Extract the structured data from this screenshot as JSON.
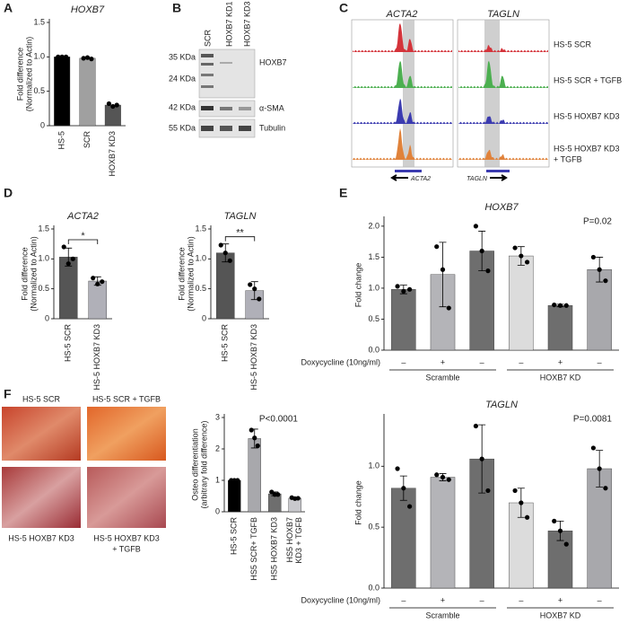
{
  "panel_labels": [
    "A",
    "B",
    "C",
    "D",
    "E",
    "F"
  ],
  "blot": {
    "lanes": [
      "SCR",
      "HOXB7 KD1",
      "HOXB7 KD3"
    ],
    "markers": [
      "35 KDa",
      "24 KDa",
      "42 KDa",
      "55 KDa"
    ],
    "proteins": [
      "HOXB7",
      "α-SMA",
      "Tubulin"
    ]
  },
  "tracks": {
    "genes": [
      "ACTA2",
      "TAGLN"
    ],
    "rows": [
      [
        "HS-5 SCR"
      ],
      [
        "HS-5 SCR + TGFB"
      ],
      [
        "HS-5 HOXB7 KD3"
      ],
      [
        "HS-5 HOXB7 KD3",
        "+ TGFB"
      ]
    ]
  },
  "images": {
    "labels": [
      [
        "HS-5 SCR"
      ],
      [
        "HS-5 SCR + TGFB"
      ],
      [
        "HS-5 HOXB7 KD3"
      ],
      [
        "HS-5 HOXB7 KD3",
        "+ TGFB"
      ]
    ]
  },
  "chart_data": [
    {
      "type": "bar",
      "title": "HOXB7",
      "ylabel": [
        "Fold difference",
        "(Normalized to Actin)"
      ],
      "categories": [
        "HS-5",
        "SCR",
        "HOXB7 KD3"
      ],
      "values": [
        1.0,
        0.98,
        0.3
      ],
      "points": [
        [
          1.0,
          1.0,
          1.0
        ],
        [
          0.98,
          0.99,
          0.97
        ],
        [
          0.32,
          0.28,
          0.3
        ]
      ],
      "colors": [
        "#000000",
        "#a0a0a0",
        "#555555"
      ],
      "ylim": [
        0,
        1.5
      ],
      "yticks": [
        0,
        0.5,
        {
          "value": 1,
          "label": "1.0"
        },
        1.5
      ]
    },
    {
      "type": "bar",
      "title": "ACTA2",
      "ylabel": [
        "Fold difference",
        "(Normalized to Actin)"
      ],
      "categories": [
        "HS-5 SCR",
        "HS-5 HOXB7 KD3"
      ],
      "values": [
        1.03,
        0.63
      ],
      "errors": [
        0.15,
        0.07
      ],
      "points": [
        [
          1.2,
          0.92,
          1.0
        ],
        [
          0.68,
          0.58,
          0.62
        ]
      ],
      "colors": [
        "#555555",
        "#b0b0b8"
      ],
      "significance": "*",
      "ylim": [
        0,
        1.5
      ],
      "yticks": [
        0,
        0.5,
        {
          "value": 1,
          "label": "1.0"
        },
        1.5
      ]
    },
    {
      "type": "bar",
      "title": "TAGLN",
      "ylabel": [
        "Fold difference",
        "(Normalized to Actin)"
      ],
      "categories": [
        "HS-5 SCR",
        "HS-5 HOXB7 KD3"
      ],
      "values": [
        1.1,
        0.47
      ],
      "errors": [
        0.15,
        0.15
      ],
      "points": [
        [
          1.23,
          1.1,
          0.97
        ],
        [
          0.57,
          0.5,
          0.33
        ]
      ],
      "colors": [
        "#555555",
        "#b0b0b8"
      ],
      "significance": "**",
      "ylim": [
        0,
        1.5
      ],
      "yticks": [
        0,
        0.5,
        {
          "value": 1,
          "label": "1.0"
        },
        1.5
      ]
    },
    {
      "type": "bar",
      "title": "HOXB7",
      "ylabel": [
        "Fold change"
      ],
      "annotation": "P=0.02",
      "xlabel": "Doxycycline (10ng/ml)",
      "groups": [
        "Scramble",
        "HOXB7 KD"
      ],
      "categories": [
        "–",
        "+",
        "–",
        "–",
        "+",
        "–"
      ],
      "values": [
        0.98,
        1.22,
        1.6,
        1.52,
        0.72,
        1.3
      ],
      "errors": [
        0.07,
        0.52,
        0.32,
        0.15,
        0.02,
        0.2
      ],
      "points": [
        [
          1.03,
          0.95,
          0.98
        ],
        [
          1.67,
          1.3,
          0.68
        ],
        [
          2.0,
          1.6,
          1.28
        ],
        [
          1.65,
          1.52,
          1.42
        ],
        [
          0.73,
          0.72,
          0.72
        ],
        [
          1.5,
          1.3,
          1.12
        ]
      ],
      "colors": [
        "#6e6e6e",
        "#b4b4b8",
        "#6e6e6e",
        "#dcdcdc",
        "#6e6e6e",
        "#a8a8ac"
      ],
      "ylim": [
        0,
        2.1
      ],
      "yticks": [
        {
          "value": 0,
          "label": "0.0"
        },
        0.5,
        {
          "value": 1,
          "label": "1.0"
        },
        1.5,
        {
          "value": 2,
          "label": "2.0"
        }
      ]
    },
    {
      "type": "bar",
      "title": "TAGLN",
      "ylabel": [
        "Fold change"
      ],
      "annotation": "P=0.0081",
      "xlabel": "Doxycycline (10ng/ml)",
      "groups": [
        "Scramble",
        "HOXB7 KD"
      ],
      "categories": [
        "–",
        "+",
        "–",
        "–",
        "+",
        "–"
      ],
      "values": [
        0.82,
        0.91,
        1.06,
        0.7,
        0.47,
        0.98
      ],
      "errors": [
        0.1,
        0.03,
        0.28,
        0.12,
        0.08,
        0.15
      ],
      "points": [
        [
          0.98,
          0.82,
          0.67
        ],
        [
          0.93,
          0.91,
          0.89
        ],
        [
          1.33,
          1.06,
          0.8
        ],
        [
          0.8,
          0.7,
          0.58
        ],
        [
          0.55,
          0.47,
          0.36
        ],
        [
          1.15,
          0.98,
          0.82
        ]
      ],
      "colors": [
        "#6e6e6e",
        "#b4b4b8",
        "#6e6e6e",
        "#dcdcdc",
        "#6e6e6e",
        "#a8a8ac"
      ],
      "ylim": [
        0,
        1.4
      ],
      "yticks": [
        {
          "value": 0,
          "label": "0.0"
        },
        0.5,
        {
          "value": 1,
          "label": "1.0"
        }
      ]
    },
    {
      "type": "bar",
      "ylabel": [
        "Osteo differentiation",
        "(arbitrary fold difference)"
      ],
      "annotation": "P<0.0001",
      "categories": [
        "HS-5 SCR",
        "HS5 SCR+ TGFB",
        "HS5 HOXB7 KD3",
        [
          "HS5 HOXB7",
          "KD3 + TGFB"
        ]
      ],
      "values": [
        1.0,
        2.33,
        0.57,
        0.43
      ],
      "errors": [
        0.01,
        0.3,
        0.06,
        0.03
      ],
      "points": [
        [
          1.0,
          1.0,
          1.0
        ],
        [
          2.6,
          2.35,
          2.1
        ],
        [
          0.63,
          0.55,
          0.55
        ],
        [
          0.45,
          0.42,
          0.43
        ]
      ],
      "colors": [
        "#000000",
        "#a8a8ac",
        "#6e6e6e",
        "#c8c8cc"
      ],
      "ylim": [
        0,
        3
      ],
      "yticks": [
        0,
        1,
        2,
        3
      ]
    }
  ]
}
